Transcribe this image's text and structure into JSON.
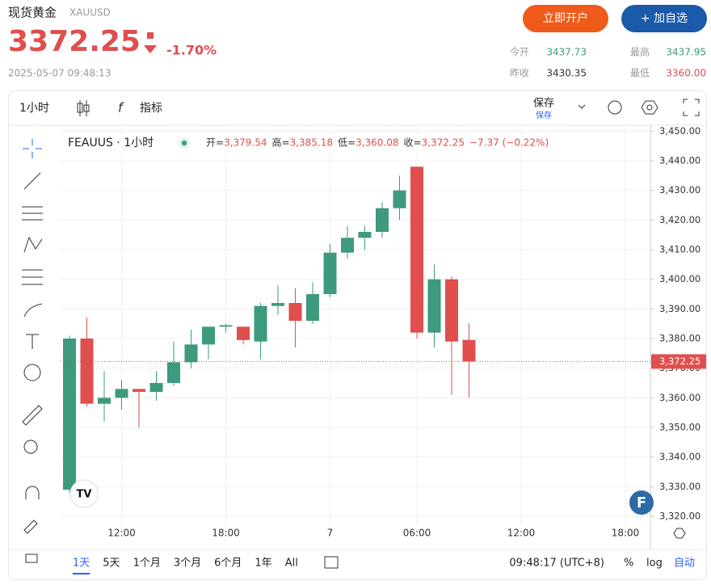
{
  "header": {
    "name": "现货黄金",
    "symbol": "XAUUSD",
    "price": "3372.25",
    "change": "-1.70%",
    "datetime": "2025-05-07 09:48:13",
    "open_btn": "立即开户",
    "watch_btn": "+ 加自选",
    "stats": [
      {
        "label": "今开",
        "value": "3437.73"
      },
      {
        "label": "最高",
        "value": "3437.95"
      },
      {
        "label": "昨收",
        "value": "3430.35"
      },
      {
        "label": "最低",
        "value": "3360.00"
      }
    ]
  },
  "toolbar": {
    "interval": "1小时",
    "indicators": "指标",
    "save": "保存",
    "save_sub": "保存"
  },
  "bottom": {
    "ranges": [
      "1天",
      "5天",
      "1个月",
      "3个月",
      "6个月",
      "1年",
      "All"
    ],
    "clock": "09:48:17 (UTC+8)",
    "percent": "%",
    "log": "log",
    "auto": "自动"
  },
  "chart_data": {
    "type": "candlestick",
    "title": "FEAUUS · 1小时",
    "legend": [
      {
        "label": "开=",
        "value": "3,379.54"
      },
      {
        "label": "高=",
        "value": "3,385.18"
      },
      {
        "label": "低=",
        "value": "3,360.08"
      },
      {
        "label": "收=",
        "value": "3,372.25"
      }
    ],
    "change": "−7.37 (−0.22%)",
    "up_color": "#3d9a7e",
    "down_color": "#e04e4e",
    "open": [
      3329,
      3380,
      3358,
      3360,
      3363,
      3362,
      3365,
      3372,
      3378,
      3384,
      3384,
      3379,
      3391,
      3392,
      3386,
      3395,
      3409,
      3414,
      3416,
      3424,
      3438,
      3382,
      3400,
      3379.54
    ],
    "close": [
      3380,
      3358,
      3360,
      3363,
      3362,
      3365,
      3372,
      3378,
      3384,
      3384.5,
      3379.5,
      3391,
      3392,
      3386,
      3395,
      3409,
      3414,
      3416,
      3424,
      3430,
      3382,
      3400,
      3379,
      3372.25
    ],
    "high": [
      3381,
      3387,
      3369,
      3366,
      3363,
      3369,
      3379,
      3383,
      3384,
      3385,
      3384,
      3392,
      3398,
      3397,
      3399,
      3412,
      3418,
      3418,
      3426,
      3435,
      3438,
      3405,
      3401,
      3385.18
    ],
    "low": [
      3328,
      3357,
      3352,
      3356,
      3350,
      3359,
      3364,
      3370,
      3373,
      3382,
      3378,
      3373,
      3388,
      3377,
      3385,
      3394,
      3407,
      3410,
      3414,
      3420,
      3380,
      3377,
      3361,
      3360.08
    ],
    "xticks": [
      {
        "value": 3,
        "label": "12:00"
      },
      {
        "value": 9,
        "label": "18:00"
      },
      {
        "value": 15,
        "label": "7"
      },
      {
        "value": 20,
        "label": "06:00"
      },
      {
        "value": 26,
        "label": "12:00"
      },
      {
        "value": 32,
        "label": "18:00"
      }
    ],
    "ylim": [
      3317,
      3452
    ],
    "yticks": [
      {
        "value": 3320,
        "label": "3,320.00"
      },
      {
        "value": 3330,
        "label": "3,330.00"
      },
      {
        "value": 3340,
        "label": "3,340.00"
      },
      {
        "value": 3350,
        "label": "3,350.00"
      },
      {
        "value": 3360,
        "label": "3,360.00"
      },
      {
        "value": 3370,
        "label": "3,370.00"
      },
      {
        "value": 3380,
        "label": "3,380.00"
      },
      {
        "value": 3390,
        "label": "3,390.00"
      },
      {
        "value": 3400,
        "label": "3,400.00"
      },
      {
        "value": 3410,
        "label": "3,410.00"
      },
      {
        "value": 3420,
        "label": "3,420.00"
      },
      {
        "value": 3430,
        "label": "3,430.00"
      },
      {
        "value": 3440,
        "label": "3,440.00"
      },
      {
        "value": 3450,
        "label": "3,450.00"
      }
    ],
    "last_price": {
      "value": 3372.25,
      "label": "3,372.25"
    },
    "grid": true
  }
}
